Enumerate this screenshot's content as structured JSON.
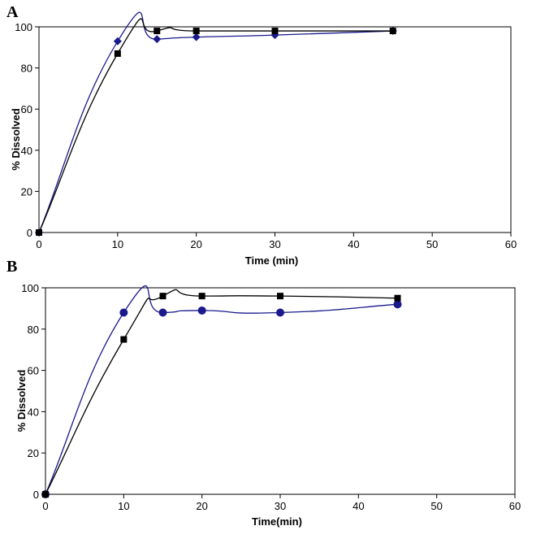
{
  "chart_data": [
    {
      "panel": "A",
      "type": "line",
      "title": "",
      "xlabel": "Time (min)",
      "ylabel": "% Dissolved",
      "xlim": [
        0,
        60
      ],
      "ylim": [
        0,
        100
      ],
      "xticks": [
        0,
        10,
        20,
        30,
        40,
        50,
        60
      ],
      "yticks": [
        0,
        20,
        40,
        60,
        80,
        100
      ],
      "grid": false,
      "legend": "none",
      "series": [
        {
          "marker": "diamond",
          "color": "#1a1a8c",
          "x": [
            0,
            10,
            15,
            20,
            30,
            45
          ],
          "y": [
            0,
            93,
            94,
            95,
            96,
            98
          ]
        },
        {
          "marker": "square",
          "color": "#000000",
          "x": [
            0,
            10,
            15,
            20,
            30,
            45
          ],
          "y": [
            0,
            87,
            98,
            98,
            98,
            98
          ]
        }
      ]
    },
    {
      "panel": "B",
      "type": "line",
      "title": "",
      "xlabel": "Time(min)",
      "ylabel": "% Dissolved",
      "xlim": [
        0,
        60
      ],
      "ylim": [
        0,
        100
      ],
      "xticks": [
        0,
        10,
        20,
        30,
        40,
        50,
        60
      ],
      "yticks": [
        0,
        20,
        40,
        60,
        80,
        100
      ],
      "grid": false,
      "legend": "none",
      "series": [
        {
          "marker": "circle",
          "color": "#1a1a8c",
          "x": [
            0,
            10,
            15,
            20,
            30,
            45
          ],
          "y": [
            0,
            88,
            88,
            89,
            88,
            92
          ]
        },
        {
          "marker": "square",
          "color": "#000000",
          "x": [
            0,
            10,
            15,
            20,
            30,
            45
          ],
          "y": [
            0,
            75,
            96,
            96,
            96,
            95
          ]
        }
      ]
    }
  ]
}
